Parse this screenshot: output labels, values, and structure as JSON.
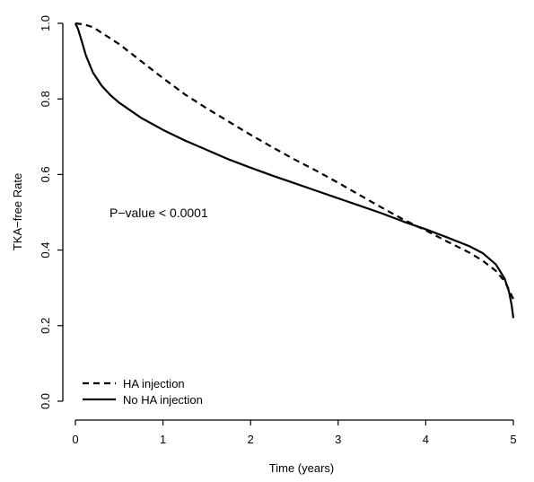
{
  "chart_data": {
    "type": "line",
    "title": "",
    "xlabel": "Time (years)",
    "ylabel": "TKA−free Rate",
    "xlim": [
      0,
      5
    ],
    "ylim": [
      0,
      1
    ],
    "x_ticks": [
      "0",
      "1",
      "2",
      "3",
      "4",
      "5"
    ],
    "y_ticks": [
      "0.0",
      "0.2",
      "0.4",
      "0.6",
      "0.8",
      "1.0"
    ],
    "grid": false,
    "legend_position": "bottom-left",
    "annotation": "P−value < 0.0001",
    "series": [
      {
        "name": "HA injection",
        "style": "dashed",
        "color": "#000000",
        "x": [
          0,
          0.1,
          0.2,
          0.3,
          0.5,
          0.75,
          1.0,
          1.25,
          1.5,
          1.75,
          2.0,
          2.25,
          2.5,
          2.75,
          3.0,
          3.25,
          3.5,
          3.75,
          4.0,
          4.25,
          4.5,
          4.65,
          4.8,
          4.9,
          4.95,
          4.98,
          5.0
        ],
        "y": [
          1.0,
          0.997,
          0.99,
          0.975,
          0.945,
          0.9,
          0.855,
          0.812,
          0.775,
          0.74,
          0.705,
          0.672,
          0.64,
          0.61,
          0.578,
          0.545,
          0.512,
          0.48,
          0.452,
          0.422,
          0.393,
          0.372,
          0.345,
          0.318,
          0.295,
          0.28,
          0.27
        ]
      },
      {
        "name": "No HA injection",
        "style": "solid",
        "color": "#000000",
        "x": [
          0,
          0.03,
          0.07,
          0.12,
          0.2,
          0.3,
          0.4,
          0.5,
          0.75,
          1.0,
          1.25,
          1.5,
          1.75,
          2.0,
          2.25,
          2.5,
          2.75,
          3.0,
          3.25,
          3.5,
          3.75,
          4.0,
          4.25,
          4.5,
          4.65,
          4.8,
          4.9,
          4.95,
          4.98,
          5.0
        ],
        "y": [
          1.0,
          0.985,
          0.955,
          0.915,
          0.87,
          0.835,
          0.81,
          0.79,
          0.75,
          0.718,
          0.69,
          0.665,
          0.64,
          0.618,
          0.597,
          0.577,
          0.557,
          0.537,
          0.517,
          0.497,
          0.475,
          0.455,
          0.433,
          0.41,
          0.392,
          0.362,
          0.325,
          0.29,
          0.255,
          0.22
        ]
      }
    ]
  }
}
